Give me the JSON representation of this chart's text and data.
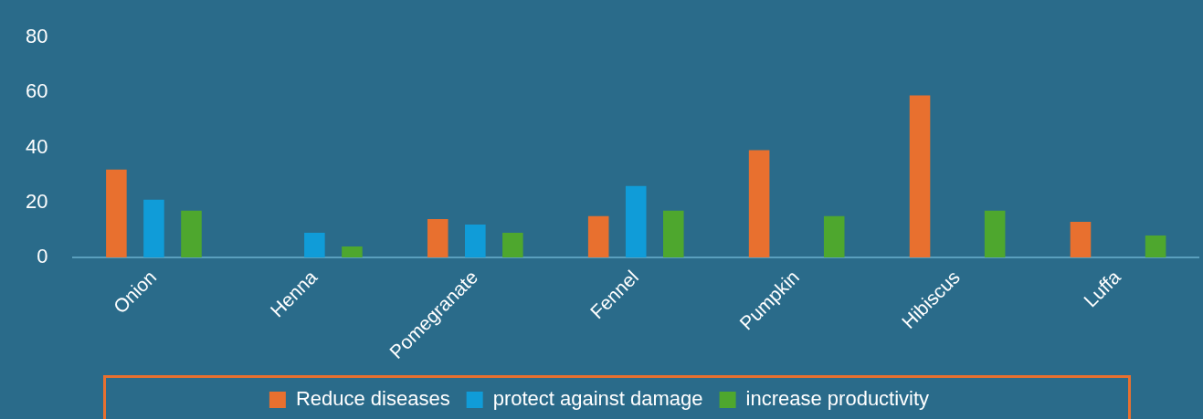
{
  "chart_data": {
    "type": "bar",
    "categories": [
      "Onion",
      "Henna",
      "Pomegranate",
      "Fennel",
      "Pumpkin",
      "Hibiscus",
      "Luffa"
    ],
    "series": [
      {
        "name": "Reduce diseases",
        "color": "#e8702f",
        "values": [
          32,
          null,
          14,
          15,
          39,
          59,
          13
        ]
      },
      {
        "name": "protect against damage",
        "color": "#109cd8",
        "values": [
          21,
          9,
          12,
          26,
          null,
          null,
          null
        ]
      },
      {
        "name": "increase productivity",
        "color": "#4ea72e",
        "values": [
          17,
          4,
          9,
          17,
          15,
          17,
          8
        ]
      }
    ],
    "ylim": [
      0,
      80
    ],
    "yticks": [
      0,
      20,
      40,
      60,
      80
    ],
    "grid": false,
    "legend": "bottom"
  }
}
